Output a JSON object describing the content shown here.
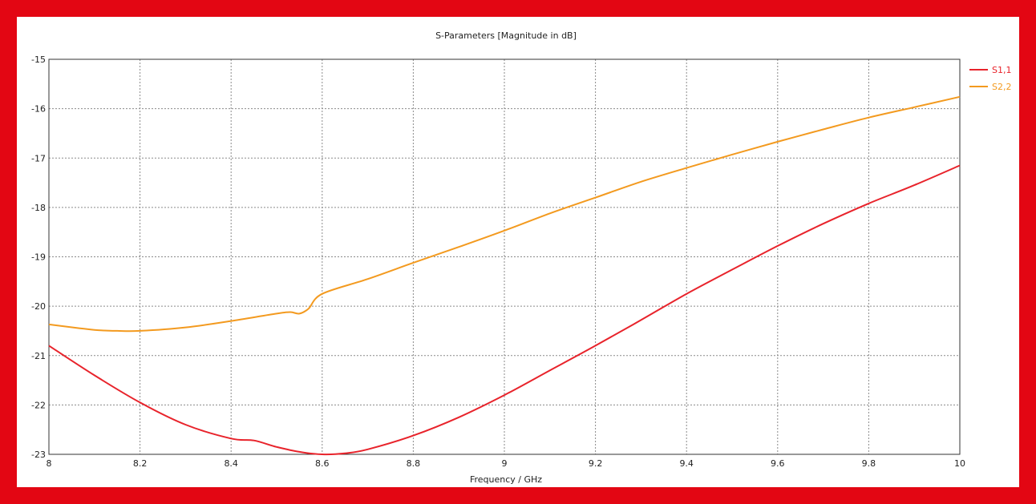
{
  "chart_data": {
    "type": "line",
    "title": "S-Parameters [Magnitude in dB]",
    "xlabel": "Frequency / GHz",
    "ylabel": "",
    "xlim": [
      8,
      10
    ],
    "ylim": [
      -23,
      -15
    ],
    "x_ticks": [
      8,
      8.2,
      8.4,
      8.6,
      8.8,
      9,
      9.2,
      9.4,
      9.6,
      9.8,
      10
    ],
    "x_tick_labels": [
      "8",
      "8.2",
      "8.4",
      "8.6",
      "8.8",
      "9",
      "9.2",
      "9.4",
      "9.6",
      "9.8",
      "10"
    ],
    "y_ticks": [
      -15,
      -16,
      -17,
      -18,
      -19,
      -20,
      -21,
      -22,
      -23
    ],
    "y_tick_labels": [
      "-15",
      "-16",
      "-17",
      "-18",
      "-19",
      "-20",
      "-21",
      "-22",
      "-23"
    ],
    "grid": true,
    "legend_position": "right",
    "series": [
      {
        "name": "S1,1",
        "color": "#e8232b",
        "x": [
          8.0,
          8.1,
          8.2,
          8.3,
          8.4,
          8.45,
          8.5,
          8.55,
          8.6,
          8.65,
          8.7,
          8.8,
          8.9,
          9.0,
          9.1,
          9.2,
          9.3,
          9.4,
          9.5,
          9.6,
          9.7,
          9.8,
          9.9,
          10.0
        ],
        "y": [
          -20.8,
          -21.4,
          -21.95,
          -22.4,
          -22.68,
          -22.72,
          -22.85,
          -22.95,
          -23.0,
          -22.98,
          -22.9,
          -22.62,
          -22.25,
          -21.8,
          -21.3,
          -20.8,
          -20.28,
          -19.75,
          -19.26,
          -18.78,
          -18.33,
          -17.92,
          -17.55,
          -17.15
        ]
      },
      {
        "name": "S2,2",
        "color": "#f39a1f",
        "x": [
          8.0,
          8.1,
          8.15,
          8.2,
          8.3,
          8.4,
          8.5,
          8.53,
          8.55,
          8.57,
          8.6,
          8.7,
          8.8,
          8.9,
          9.0,
          9.1,
          9.2,
          9.3,
          9.4,
          9.5,
          9.6,
          9.7,
          9.8,
          9.9,
          10.0
        ],
        "y": [
          -20.37,
          -20.48,
          -20.5,
          -20.5,
          -20.43,
          -20.3,
          -20.15,
          -20.12,
          -20.15,
          -20.05,
          -19.75,
          -19.45,
          -19.12,
          -18.8,
          -18.47,
          -18.12,
          -17.8,
          -17.48,
          -17.2,
          -16.93,
          -16.67,
          -16.42,
          -16.18,
          -15.97,
          -15.76
        ]
      }
    ]
  }
}
